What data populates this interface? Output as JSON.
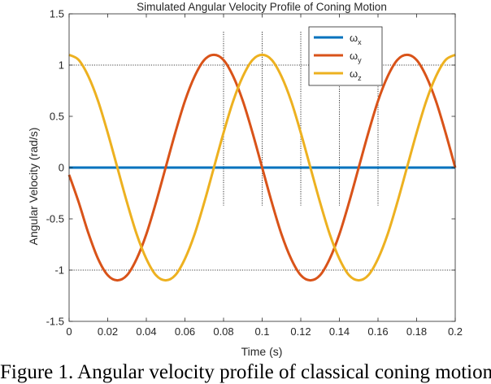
{
  "chart_data": {
    "type": "line",
    "title": "Simulated Angular Velocity Profile of Coning Motion",
    "xlabel": "Time (s)",
    "ylabel": "Angular Velocity (rad/s)",
    "xlim": [
      0,
      0.2
    ],
    "ylim": [
      -1.5,
      1.5
    ],
    "xticks": [
      0,
      0.02,
      0.04,
      0.06,
      0.08,
      0.1,
      0.12,
      0.14,
      0.16,
      0.18,
      0.2
    ],
    "xtick_labels": [
      "0",
      "0.02",
      "0.04",
      "0.06",
      "0.08",
      "0.1",
      "0.12",
      "0.14",
      "0.16",
      "0.18",
      "0.2"
    ],
    "yticks": [
      -1.5,
      -1,
      -0.5,
      0,
      0.5,
      1,
      1.5
    ],
    "ytick_labels": [
      "-1.5",
      "-1",
      "-0.5",
      "0",
      "0.5",
      "1",
      "1.5"
    ],
    "grid": false,
    "legend": "top-right",
    "reference_lines": {
      "horizontal": [
        1,
        -1
      ],
      "vertical": [
        0.08,
        0.1,
        0.12,
        0.14,
        0.16
      ]
    },
    "x": [
      0,
      0.005,
      0.01,
      0.015,
      0.02,
      0.025,
      0.03,
      0.035,
      0.04,
      0.045,
      0.05,
      0.055,
      0.06,
      0.065,
      0.07,
      0.075,
      0.08,
      0.085,
      0.09,
      0.095,
      0.1,
      0.105,
      0.11,
      0.115,
      0.12,
      0.125,
      0.13,
      0.135,
      0.14,
      0.145,
      0.15,
      0.155,
      0.16,
      0.165,
      0.17,
      0.175,
      0.18,
      0.185,
      0.19,
      0.195,
      0.2
    ],
    "series": [
      {
        "name": "ω",
        "subscript": "x",
        "color": "#0072BD",
        "values": [
          0,
          0,
          0,
          0,
          0,
          0,
          0,
          0,
          0,
          0,
          0,
          0,
          0,
          0,
          0,
          0,
          0,
          0,
          0,
          0,
          0,
          0,
          0,
          0,
          0,
          0,
          0,
          0,
          0,
          0,
          0,
          0,
          0,
          0,
          0,
          0,
          0,
          0,
          0,
          0,
          0
        ]
      },
      {
        "name": "ω",
        "subscript": "y",
        "color": "#D95319",
        "values": [
          -0.07,
          -0.34,
          -0.64,
          -0.89,
          -1.05,
          -1.1,
          -1.05,
          -0.89,
          -0.65,
          -0.34,
          0,
          0.34,
          0.65,
          0.89,
          1.05,
          1.1,
          1.05,
          0.89,
          0.65,
          0.34,
          0,
          -0.34,
          -0.65,
          -0.89,
          -1.05,
          -1.1,
          -1.05,
          -0.89,
          -0.65,
          -0.34,
          0,
          0.34,
          0.65,
          0.89,
          1.05,
          1.1,
          1.05,
          0.89,
          0.65,
          0.34,
          0
        ]
      },
      {
        "name": "ω",
        "subscript": "z",
        "color": "#EDB120",
        "values": [
          1.1,
          1.05,
          0.89,
          0.65,
          0.34,
          0,
          -0.34,
          -0.65,
          -0.89,
          -1.05,
          -1.1,
          -1.05,
          -0.89,
          -0.65,
          -0.34,
          0,
          0.34,
          0.65,
          0.89,
          1.05,
          1.1,
          1.05,
          0.89,
          0.65,
          0.34,
          0,
          -0.34,
          -0.65,
          -0.89,
          -1.05,
          -1.1,
          -1.05,
          -0.89,
          -0.65,
          -0.34,
          0,
          0.34,
          0.65,
          0.89,
          1.05,
          1.1
        ]
      }
    ]
  },
  "caption": "Figure 1. Angular velocity profile of classical coning motion"
}
